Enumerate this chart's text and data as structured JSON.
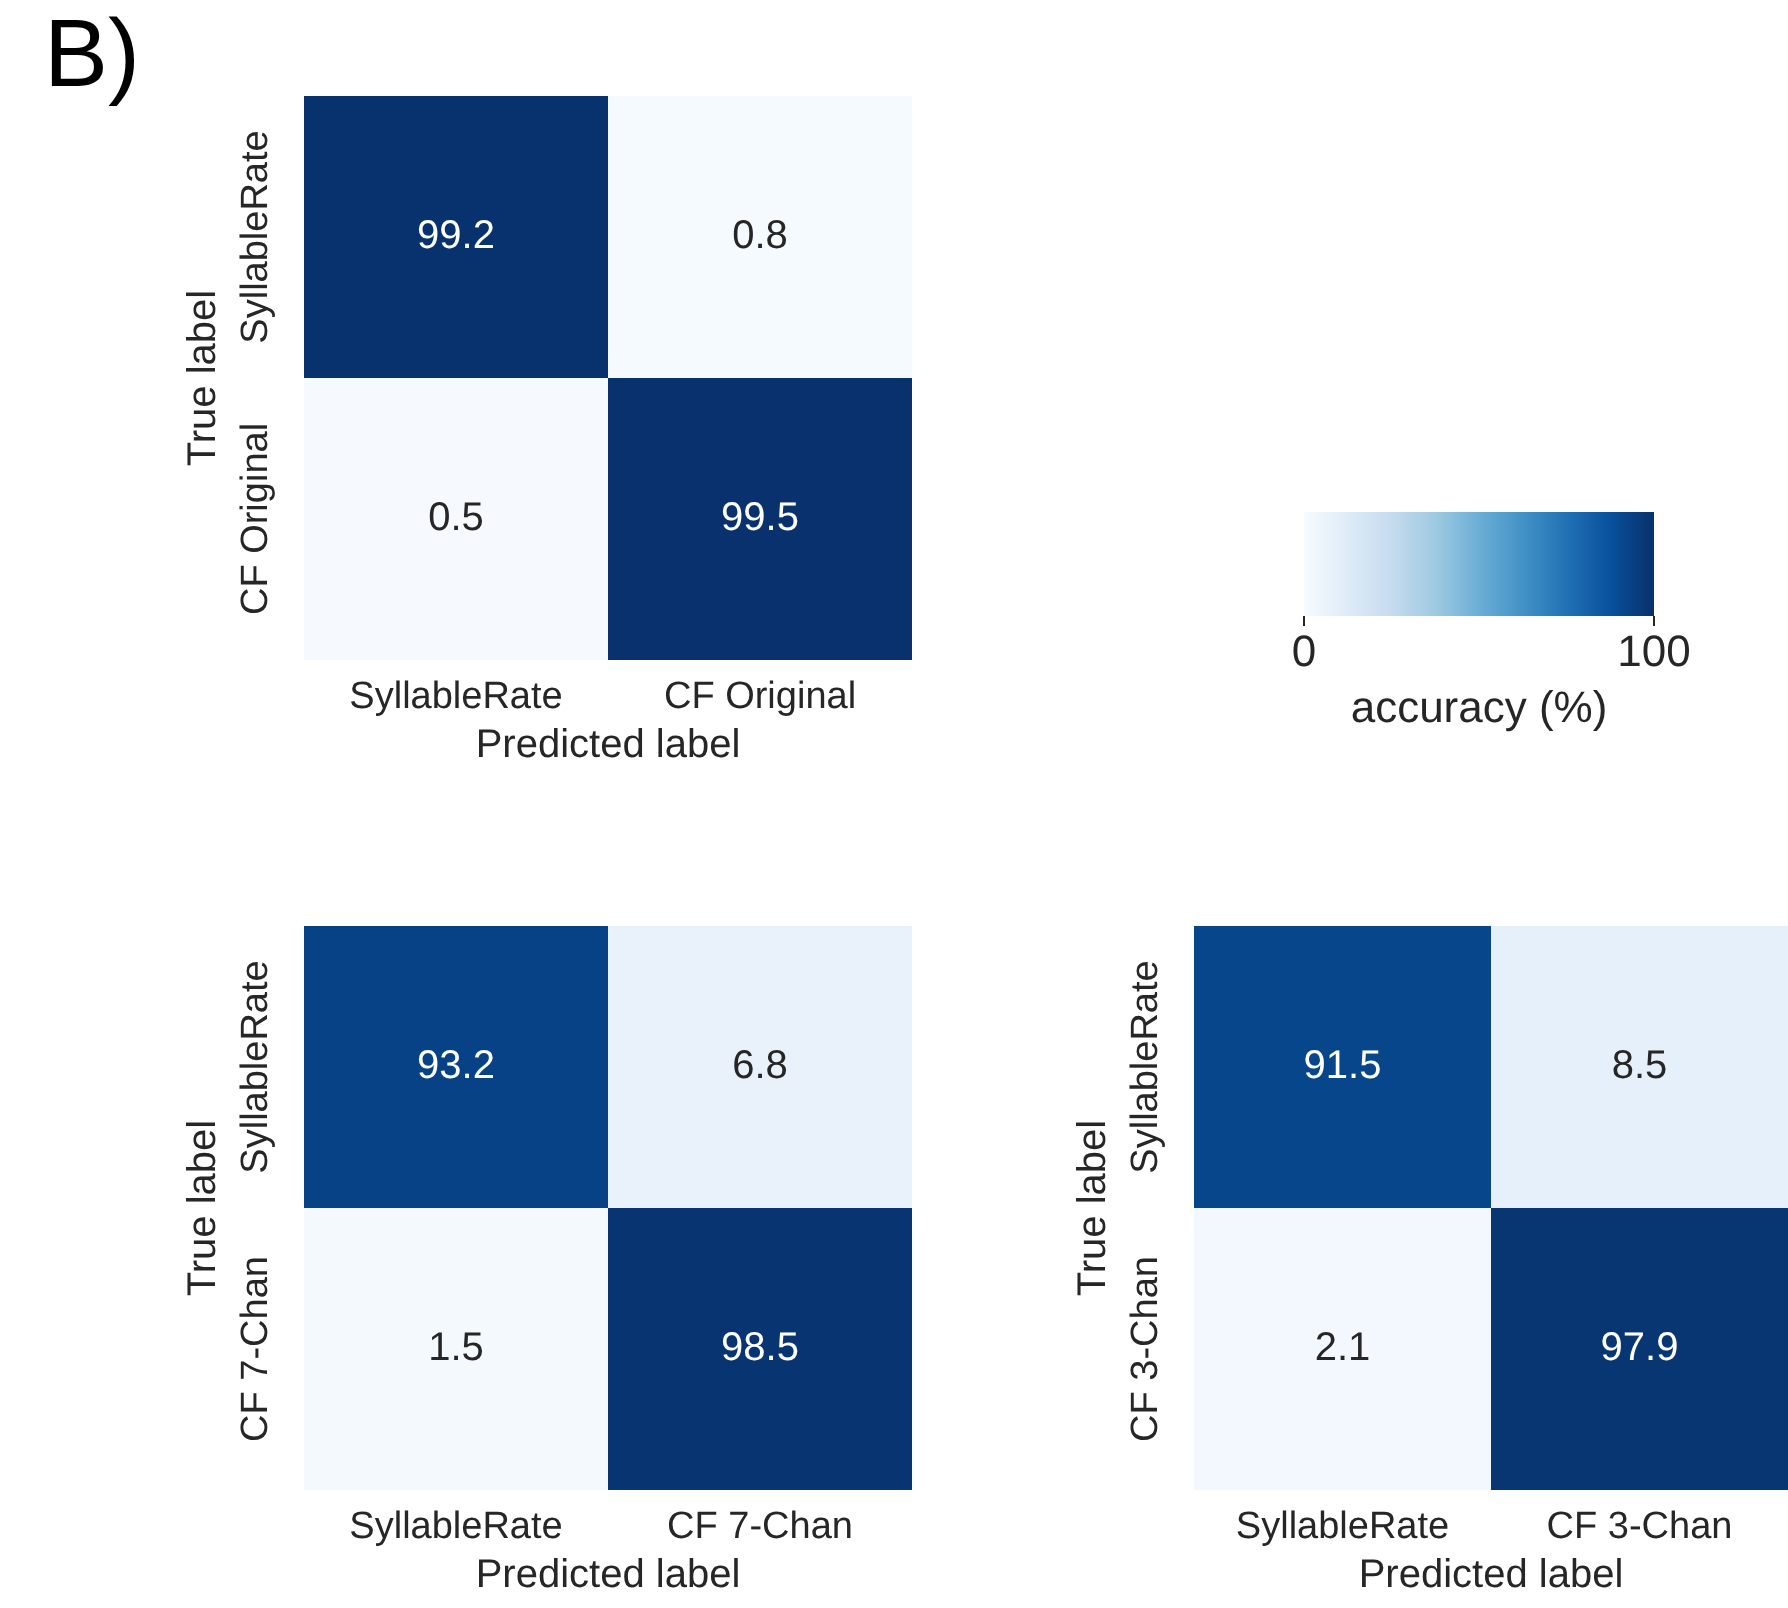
{
  "chart_data": [
    {
      "type": "heatmap",
      "annotations": [
        "B)"
      ],
      "categories": [
        "SyllableRate",
        "CF Original"
      ],
      "y_categories": [
        "SyllableRate",
        "CF Original"
      ],
      "cells": [
        [
          99.2,
          0.8
        ],
        [
          0.5,
          99.5
        ]
      ],
      "data_labels": true,
      "xlabel": "Predicted label",
      "ylabel": "True label",
      "clim": [
        0,
        100
      ],
      "cticks": [
        0,
        100
      ],
      "clabel": "accuracy (%)"
    },
    {
      "type": "heatmap",
      "categories": [
        "SyllableRate",
        "CF 7-Chan"
      ],
      "y_categories": [
        "SyllableRate",
        "CF 7-Chan"
      ],
      "cells": [
        [
          93.2,
          6.8
        ],
        [
          1.5,
          98.5
        ]
      ],
      "data_labels": true,
      "xlabel": "Predicted label",
      "ylabel": "True label"
    },
    {
      "type": "heatmap",
      "categories": [
        "SyllableRate",
        "CF 3-Chan"
      ],
      "y_categories": [
        "SyllableRate",
        "CF 3-Chan"
      ],
      "cells": [
        [
          91.5,
          8.5
        ],
        [
          2.1,
          97.9
        ]
      ],
      "data_labels": true,
      "xlabel": "Predicted label",
      "ylabel": "True label"
    }
  ]
}
